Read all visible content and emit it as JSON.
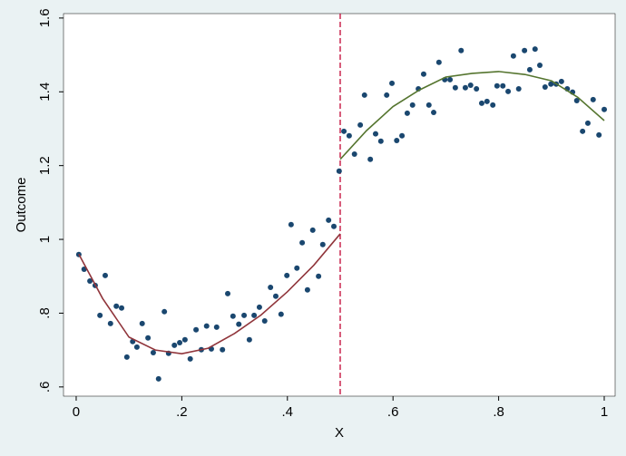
{
  "chart_data": {
    "type": "scatter",
    "xlabel": "X",
    "ylabel": "Outcome",
    "xlim": [
      -0.024,
      1.0206
    ],
    "ylim": [
      0.575,
      1.612
    ],
    "xticks": [
      0,
      {
        "value": 0.2,
        "label": ".2"
      },
      {
        "value": 0.4,
        "label": ".4"
      },
      {
        "value": 0.6,
        "label": ".6"
      },
      {
        "value": 0.8,
        "label": ".8"
      },
      1
    ],
    "yticks": [
      {
        "value": 0.6,
        "label": ".6"
      },
      {
        "value": 0.8,
        "label": ".8"
      },
      1,
      1.2,
      1.4,
      1.6
    ],
    "vline": 0.5,
    "vline_color": "#c10534",
    "series": [
      {
        "type": "scatter",
        "color": "#1a476f",
        "x": [
          0.005,
          0.015,
          0.026,
          0.036,
          0.045,
          0.055,
          0.065,
          0.076,
          0.086,
          0.096,
          0.107,
          0.115,
          0.125,
          0.136,
          0.146,
          0.156,
          0.167,
          0.175,
          0.186,
          0.196,
          0.206,
          0.216,
          0.227,
          0.237,
          0.247,
          0.256,
          0.266,
          0.277,
          0.287,
          0.297,
          0.308,
          0.318,
          0.328,
          0.337,
          0.347,
          0.357,
          0.368,
          0.378,
          0.388,
          0.399,
          0.407,
          0.418,
          0.428,
          0.438,
          0.448,
          0.459,
          0.467,
          0.478,
          0.488,
          0.498,
          0.507,
          0.517,
          0.527,
          0.538,
          0.546,
          0.557,
          0.567,
          0.577,
          0.588,
          0.598,
          0.607,
          0.617,
          0.627,
          0.637,
          0.648,
          0.658,
          0.668,
          0.677,
          0.687,
          0.698,
          0.708,
          0.718,
          0.729,
          0.737,
          0.747,
          0.758,
          0.768,
          0.778,
          0.789,
          0.797,
          0.808,
          0.818,
          0.828,
          0.838,
          0.849,
          0.859,
          0.869,
          0.878,
          0.888,
          0.899,
          0.909,
          0.919,
          0.93,
          0.94,
          0.948,
          0.959,
          0.969,
          0.979,
          0.99,
          1.0
        ],
        "values": [
          0.959,
          0.919,
          0.887,
          0.875,
          0.794,
          0.902,
          0.772,
          0.819,
          0.814,
          0.681,
          0.723,
          0.708,
          0.772,
          0.733,
          0.693,
          0.622,
          0.804,
          0.691,
          0.713,
          0.72,
          0.728,
          0.676,
          0.755,
          0.701,
          0.765,
          0.703,
          0.762,
          0.701,
          0.853,
          0.792,
          0.77,
          0.794,
          0.728,
          0.794,
          0.816,
          0.779,
          0.87,
          0.846,
          0.797,
          0.902,
          1.04,
          0.922,
          0.991,
          0.863,
          1.025,
          0.9,
          0.986,
          1.052,
          1.035,
          1.185,
          1.293,
          1.281,
          1.231,
          1.31,
          1.391,
          1.217,
          1.286,
          1.266,
          1.391,
          1.423,
          1.268,
          1.281,
          1.342,
          1.364,
          1.408,
          1.448,
          1.364,
          1.344,
          1.48,
          1.433,
          1.433,
          1.411,
          1.512,
          1.411,
          1.418,
          1.408,
          1.369,
          1.374,
          1.364,
          1.416,
          1.416,
          1.401,
          1.497,
          1.408,
          1.512,
          1.46,
          1.516,
          1.472,
          1.413,
          1.421,
          1.421,
          1.428,
          1.408,
          1.399,
          1.376,
          1.293,
          1.315,
          1.379,
          1.283,
          1.352
        ]
      },
      {
        "type": "line",
        "color": "#90353b",
        "x": [
          0.005,
          0.05,
          0.1,
          0.15,
          0.2,
          0.25,
          0.3,
          0.35,
          0.4,
          0.45,
          0.5
        ],
        "values": [
          0.96,
          0.84,
          0.735,
          0.7,
          0.69,
          0.705,
          0.745,
          0.795,
          0.858,
          0.93,
          1.015
        ]
      },
      {
        "type": "line",
        "color": "#55752f",
        "x": [
          0.5,
          0.55,
          0.6,
          0.65,
          0.7,
          0.75,
          0.8,
          0.85,
          0.9,
          0.95,
          1.0
        ],
        "values": [
          1.217,
          1.295,
          1.36,
          1.405,
          1.44,
          1.45,
          1.455,
          1.447,
          1.43,
          1.385,
          1.322
        ]
      }
    ]
  }
}
